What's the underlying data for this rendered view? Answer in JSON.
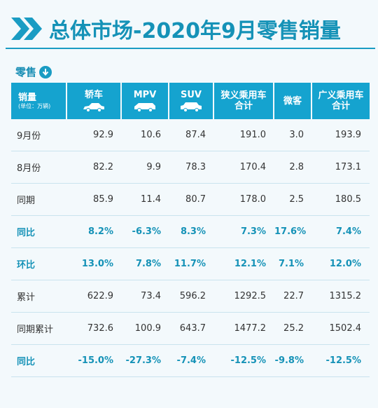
{
  "title": "总体市场-2020年9月零售销量",
  "section_label": "零售",
  "colors": {
    "accent": "#1a9cc3",
    "header_bg": "#15a3cf",
    "title": "#1592b7"
  },
  "header": {
    "first": {
      "label": "销量",
      "unit": "(单位：万辆)"
    },
    "columns": [
      {
        "line1": "轿车",
        "line2": "",
        "icon": "sedan-icon"
      },
      {
        "line1": "MPV",
        "line2": "",
        "icon": "mpv-icon"
      },
      {
        "line1": "SUV",
        "line2": "",
        "icon": "suv-icon"
      },
      {
        "line1": "狭义乘用车",
        "line2": "合计",
        "icon": ""
      },
      {
        "line1": "微客",
        "line2": "",
        "icon": ""
      },
      {
        "line1": "广义乘用车",
        "line2": "合计",
        "icon": ""
      }
    ]
  },
  "rows": [
    {
      "label": "9月份",
      "values": [
        "92.9",
        "10.6",
        "87.4",
        "191.0",
        "3.0",
        "193.9"
      ],
      "accent": false
    },
    {
      "label": "8月份",
      "values": [
        "82.2",
        "9.9",
        "78.3",
        "170.4",
        "2.8",
        "173.1"
      ],
      "accent": false
    },
    {
      "label": "同期",
      "values": [
        "85.9",
        "11.4",
        "80.7",
        "178.0",
        "2.5",
        "180.5"
      ],
      "accent": false
    },
    {
      "label": "同比",
      "values": [
        "8.2%",
        "-6.3%",
        "8.3%",
        "7.3%",
        "17.6%",
        "7.4%"
      ],
      "accent": true
    },
    {
      "label": "环比",
      "values": [
        "13.0%",
        "7.8%",
        "11.7%",
        "12.1%",
        "7.1%",
        "12.0%"
      ],
      "accent": true
    },
    {
      "label": "累计",
      "values": [
        "622.9",
        "73.4",
        "596.2",
        "1292.5",
        "22.7",
        "1315.2"
      ],
      "accent": false
    },
    {
      "label": "同期累计",
      "values": [
        "732.6",
        "100.9",
        "643.7",
        "1477.2",
        "25.2",
        "1502.4"
      ],
      "accent": false
    },
    {
      "label": "同比",
      "values": [
        "-15.0%",
        "-27.3%",
        "-7.4%",
        "-12.5%",
        "-9.8%",
        "-12.5%"
      ],
      "accent": true
    }
  ]
}
